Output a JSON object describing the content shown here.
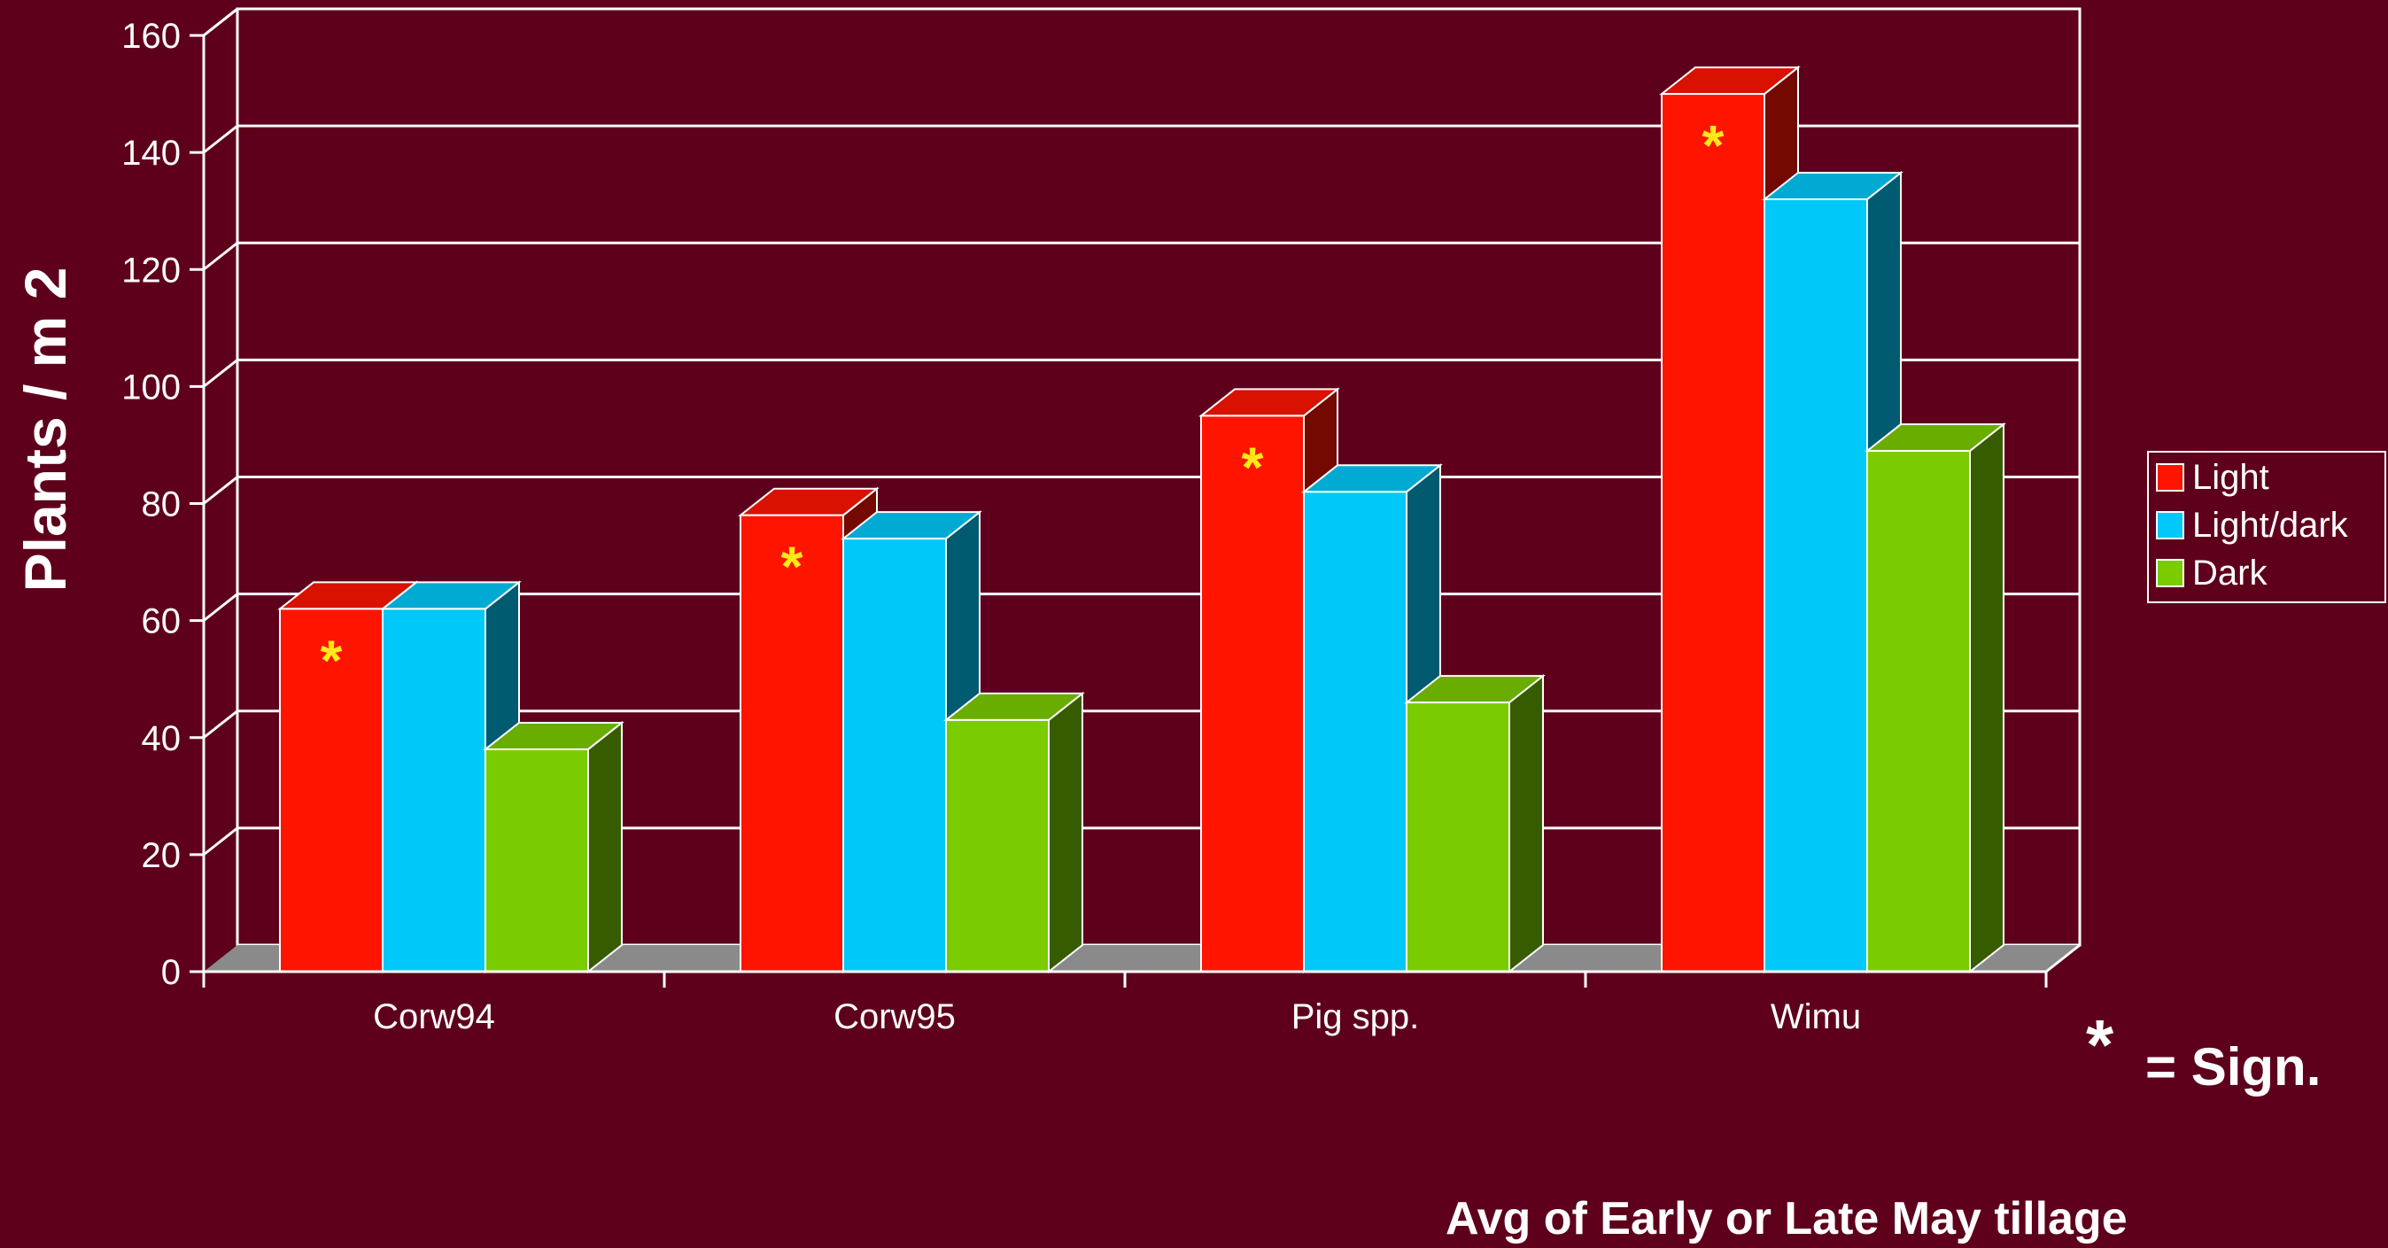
{
  "chart_data": {
    "type": "bar",
    "style": "3d-clustered",
    "categories": [
      "Corw94",
      "Corw95",
      "Pig spp.",
      "Wimu"
    ],
    "series": [
      {
        "name": "Light",
        "color": "#ff1400",
        "values": [
          62,
          78,
          95,
          150
        ]
      },
      {
        "name": "Light/dark",
        "color": "#00c8f8",
        "values": [
          62,
          74,
          82,
          132
        ]
      },
      {
        "name": "Dark",
        "color": "#7acc00",
        "values": [
          38,
          43,
          46,
          89
        ]
      }
    ],
    "significant": {
      "series": "Light",
      "categories": [
        "Corw94",
        "Corw95",
        "Pig spp.",
        "Wimu"
      ],
      "marker": "*"
    },
    "ylabel": "Plants / m 2",
    "xlabel": "",
    "ylim": [
      0,
      160
    ],
    "yticks": [
      "0",
      "20",
      "40",
      "60",
      "80",
      "100",
      "120",
      "140",
      "160"
    ],
    "grid": true,
    "legend_position": "right"
  },
  "notes": {
    "sign_star": "*",
    "sign_text": "= Sign.",
    "footnote": "Avg of Early or Late May tillage"
  },
  "colors": {
    "background": "#5e001c",
    "grid": "#ffffff",
    "floor": "#8a8a8a",
    "star": "#ffe81a"
  }
}
